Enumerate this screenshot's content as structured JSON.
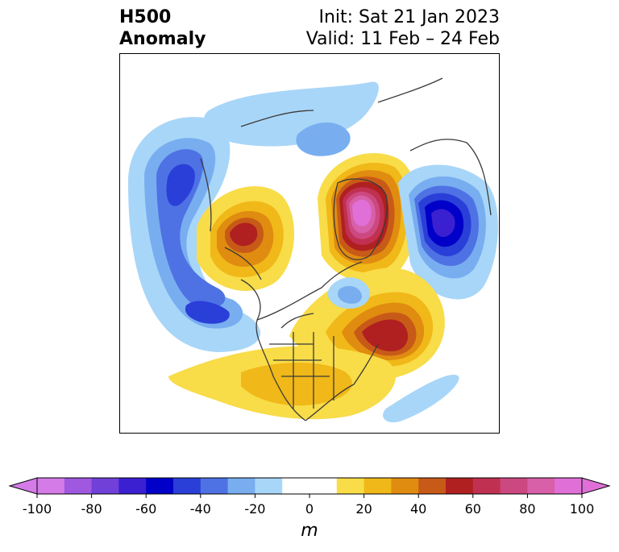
{
  "header": {
    "variable": "H500",
    "field": "Anomaly",
    "init": "Init: Sat 21 Jan 2023",
    "valid": "Valid: 11 Feb – 24 Feb"
  },
  "colorbar": {
    "units": "m",
    "min": -100,
    "max": 100,
    "step": 10,
    "tick_labels": [
      "-100",
      "-80",
      "-60",
      "-40",
      "-20",
      "0",
      "20",
      "40",
      "60",
      "80",
      "100"
    ],
    "colors": [
      "#d47be8",
      "#a058e0",
      "#7040d8",
      "#3a20d0",
      "#0000c8",
      "#2a3fd8",
      "#4e72e4",
      "#78aef0",
      "#a8d6f8",
      "#ffffff",
      "#ffffff",
      "#f8dc48",
      "#f0b818",
      "#e08c10",
      "#c85a18",
      "#b02020",
      "#c03050",
      "#cc4880",
      "#d860a8",
      "#e070d8"
    ],
    "extend": "both",
    "under_color": "#d47be8",
    "over_color": "#e070d8"
  },
  "map": {
    "projection": "north-polar",
    "region": "Northern Hemisphere centered on North America / Arctic",
    "anomalies": [
      {
        "region": "Gulf of Alaska / North Pacific",
        "value_m": -50
      },
      {
        "region": "Subtropical North Pacific",
        "value_m": -50
      },
      {
        "region": "Northern Canada / Hudson Bay",
        "value_m": 50
      },
      {
        "region": "Greenland / Arctic",
        "value_m": 90
      },
      {
        "region": "Northern Siberia",
        "value_m": -70
      },
      {
        "region": "Western North Atlantic",
        "value_m": 60
      },
      {
        "region": "Eastern United States",
        "value_m": 20
      },
      {
        "region": "Baffin Bay",
        "value_m": -30
      }
    ]
  }
}
